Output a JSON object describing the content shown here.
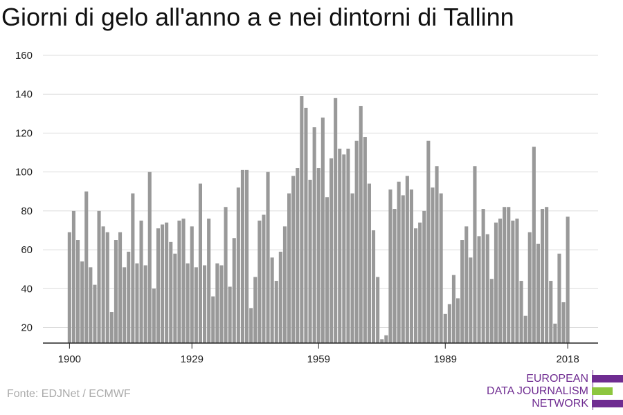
{
  "title": "Giorni di gelo all'anno a e nei dintorni di Tallinn",
  "source": "Fonte: EDJNet / ECMWF",
  "logo": {
    "lines": [
      "EUROPEAN",
      "DATA JOURNALISM",
      "NETWORK"
    ],
    "colors": {
      "purple": "#6f2c91",
      "green": "#8dc63f"
    }
  },
  "colors": {
    "bar": "#999999",
    "grid": "#dddddd",
    "axis": "#222222"
  },
  "chart_data": {
    "type": "bar",
    "title": "Giorni di gelo all'anno a e nei dintorni di Tallinn",
    "xlabel": "",
    "ylabel": "",
    "x_start": 1900,
    "x_ticks": [
      1900,
      1929,
      1959,
      1989,
      2018
    ],
    "y_ticks": [
      20,
      40,
      60,
      80,
      100,
      120,
      140,
      160
    ],
    "ylim": [
      12,
      160
    ],
    "grid": true,
    "values": [
      69,
      80,
      65,
      54,
      90,
      51,
      42,
      80,
      72,
      69,
      28,
      65,
      69,
      51,
      59,
      89,
      53,
      75,
      52,
      100,
      40,
      71,
      73,
      74,
      64,
      58,
      75,
      76,
      53,
      72,
      51,
      94,
      52,
      76,
      36,
      53,
      52,
      82,
      41,
      66,
      92,
      101,
      101,
      30,
      46,
      75,
      78,
      100,
      56,
      44,
      59,
      72,
      89,
      98,
      102,
      139,
      133,
      96,
      123,
      102,
      128,
      87,
      107,
      138,
      112,
      109,
      112,
      89,
      116,
      134,
      118,
      94,
      70,
      46,
      14,
      16,
      91,
      81,
      95,
      88,
      98,
      91,
      71,
      74,
      80,
      116,
      92,
      103,
      89,
      27,
      32,
      47,
      35,
      65,
      72,
      56,
      103,
      67,
      81,
      68,
      45,
      74,
      76,
      82,
      82,
      75,
      76,
      44,
      26,
      69,
      113,
      63,
      81,
      82,
      44,
      22,
      58,
      33,
      77
    ]
  }
}
